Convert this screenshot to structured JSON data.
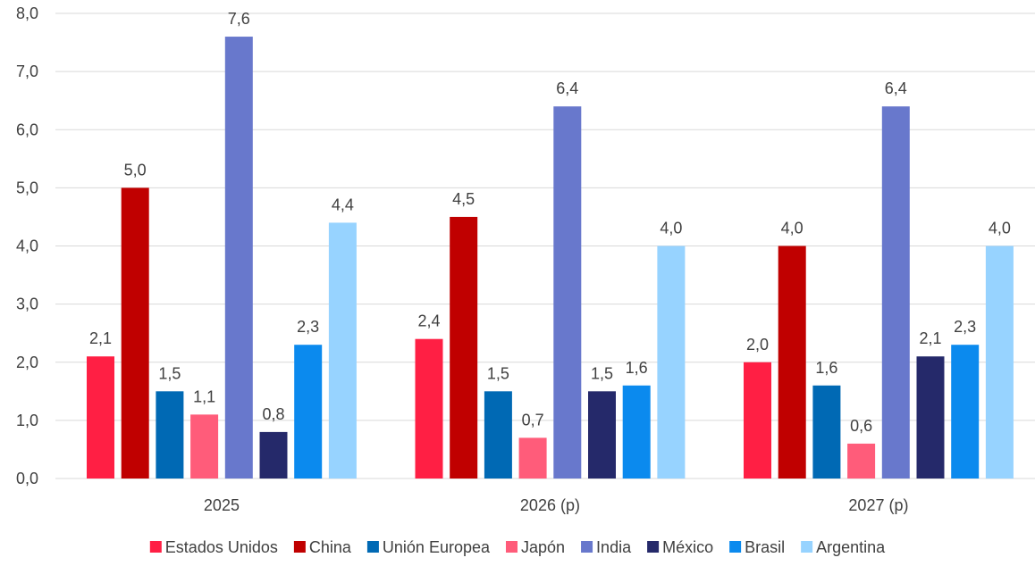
{
  "chart_data": {
    "type": "bar",
    "title": "",
    "xlabel": "",
    "ylabel": "",
    "categories": [
      "2025",
      "2026 (p)",
      "2027 (p)"
    ],
    "ylim": [
      0,
      8
    ],
    "y_ticks": [
      "0,0",
      "1,0",
      "2,0",
      "3,0",
      "4,0",
      "5,0",
      "6,0",
      "7,0",
      "8,0"
    ],
    "grid": true,
    "legend_position": "bottom",
    "series": [
      {
        "name": "Estados Unidos",
        "color": "#FF1F44",
        "values": [
          2.1,
          2.4,
          2.0
        ],
        "labels": [
          "2,1",
          "2,4",
          "2,0"
        ]
      },
      {
        "name": "China",
        "color": "#C00000",
        "values": [
          5.0,
          4.5,
          4.0
        ],
        "labels": [
          "5,0",
          "4,5",
          "4,0"
        ]
      },
      {
        "name": "Unión Europea",
        "color": "#0069B4",
        "values": [
          1.5,
          1.5,
          1.6
        ],
        "labels": [
          "1,5",
          "1,5",
          "1,6"
        ]
      },
      {
        "name": "Japón",
        "color": "#FF5C7A",
        "values": [
          1.1,
          0.7,
          0.6
        ],
        "labels": [
          "1,1",
          "0,7",
          "0,6"
        ]
      },
      {
        "name": "India",
        "color": "#6878CC",
        "values": [
          7.6,
          6.4,
          6.4
        ],
        "labels": [
          "7,6",
          "6,4",
          "6,4"
        ]
      },
      {
        "name": "México",
        "color": "#25296A",
        "values": [
          0.8,
          1.5,
          2.1
        ],
        "labels": [
          "0,8",
          "1,5",
          "2,1"
        ]
      },
      {
        "name": "Brasil",
        "color": "#0B8AEE",
        "values": [
          2.3,
          1.6,
          2.3
        ],
        "labels": [
          "2,3",
          "1,6",
          "2,3"
        ]
      },
      {
        "name": "Argentina",
        "color": "#97D3FF",
        "values": [
          4.4,
          4.0,
          4.0
        ],
        "labels": [
          "4,4",
          "4,0",
          "4,0"
        ]
      }
    ]
  }
}
